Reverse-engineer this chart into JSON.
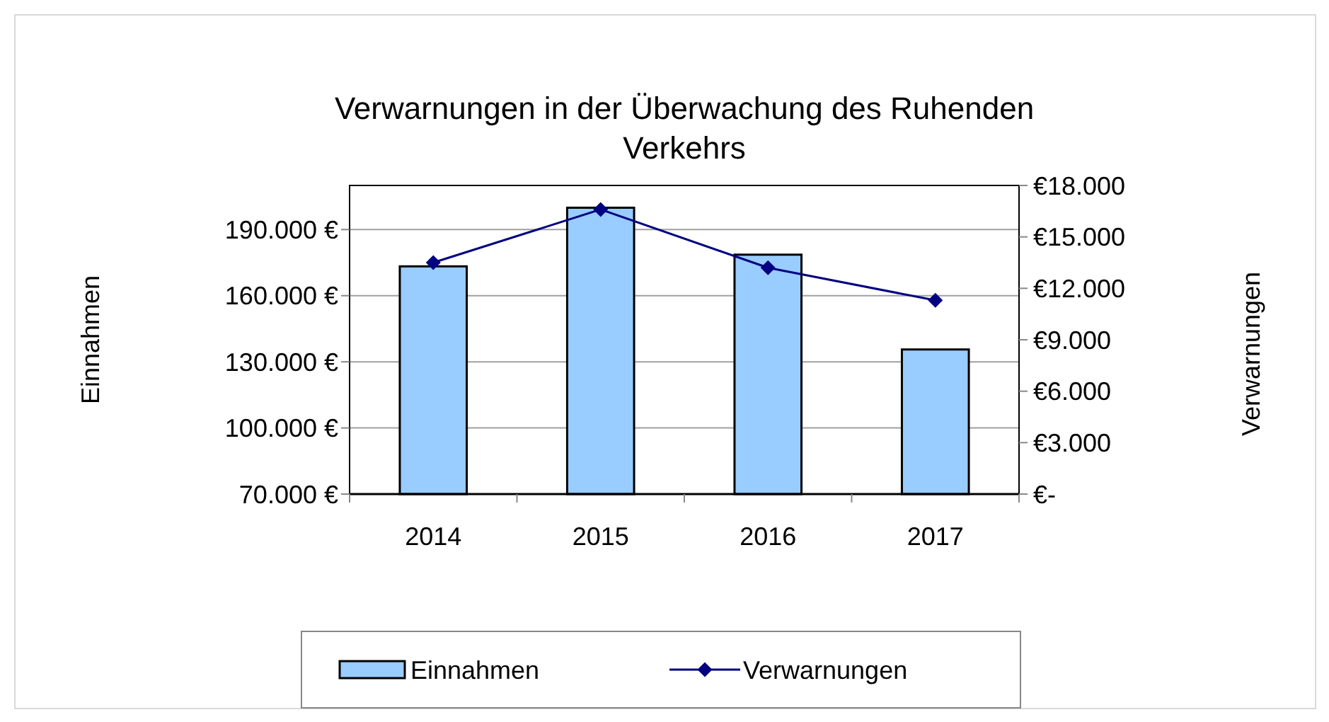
{
  "chart_data": {
    "type": "bar",
    "title": "Verwarnungen in der Überwachung des Ruhenden Verkehrs",
    "ylabel": "Einnahmen",
    "y2label": "Verwarnungen",
    "categories": [
      "2014",
      "2015",
      "2016",
      "2017"
    ],
    "series": [
      {
        "name": "Einnahmen",
        "color": "#99ccff",
        "values": [
          173300,
          199900,
          178600,
          135600
        ]
      },
      {
        "name": "Verwarnungen",
        "type": "line",
        "axis": "y2",
        "color": "#000080",
        "marker": "diamond",
        "values": [
          13500,
          16600,
          13200,
          11300
        ]
      }
    ],
    "ylim": [
      70000,
      210000
    ],
    "yticks": [
      {
        "value": 70000,
        "label": "70.000 €"
      },
      {
        "value": 100000,
        "label": "100.000 €"
      },
      {
        "value": 130000,
        "label": "130.000 €"
      },
      {
        "value": 160000,
        "label": "160.000 €"
      },
      {
        "value": 190000,
        "label": "190.000 €"
      }
    ],
    "y2lim": [
      0,
      18000
    ],
    "y2ticks": [
      {
        "value": 0,
        "label": "€-"
      },
      {
        "value": 3000,
        "label": "€3.000"
      },
      {
        "value": 6000,
        "label": "€6.000"
      },
      {
        "value": 9000,
        "label": "€9.000"
      },
      {
        "value": 12000,
        "label": "€12.000"
      },
      {
        "value": 15000,
        "label": "€15.000"
      },
      {
        "value": 18000,
        "label": "€18.000"
      }
    ],
    "grid": "y",
    "legend": "bottom"
  }
}
